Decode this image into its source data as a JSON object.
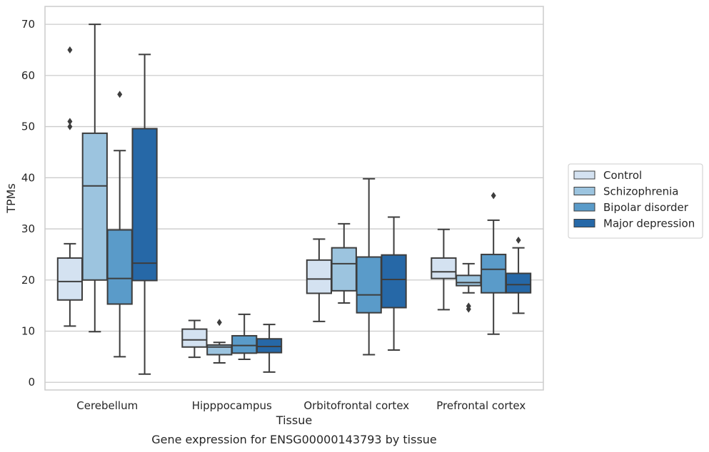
{
  "chart_data": {
    "type": "box",
    "caption": "Gene expression for ENSG00000143793 by tissue",
    "xlabel": "Tissue",
    "ylabel": "TPMs",
    "ylim": [
      -1.5,
      73.5
    ],
    "yticks": [
      0,
      10,
      20,
      30,
      40,
      50,
      60,
      70
    ],
    "grid": "horizontal",
    "legend_position": "right",
    "categories": [
      "Cerebellum",
      "Hipppocampus",
      "Orbitofrontal cortex",
      "Prefrontal cortex"
    ],
    "series": [
      {
        "name": "Control",
        "color": "#d4e2f1",
        "boxes": [
          {
            "whislo": 11,
            "q1": 16.1,
            "med": 19.7,
            "q3": 24.3,
            "whishi": 27.1,
            "fliers": [
              50,
              51,
              65
            ]
          },
          {
            "whislo": 4.9,
            "q1": 6.9,
            "med": 8.3,
            "q3": 10.4,
            "whishi": 12.1,
            "fliers": []
          },
          {
            "whislo": 11.9,
            "q1": 17.4,
            "med": 20.2,
            "q3": 23.9,
            "whishi": 28,
            "fliers": []
          },
          {
            "whislo": 14.2,
            "q1": 20.3,
            "med": 21.6,
            "q3": 24.3,
            "whishi": 29.9,
            "fliers": []
          }
        ]
      },
      {
        "name": "Schizophrenia",
        "color": "#9cc4df",
        "boxes": [
          {
            "whislo": 9.9,
            "q1": 20,
            "med": 38.4,
            "q3": 48.7,
            "whishi": 70,
            "fliers": []
          },
          {
            "whislo": 3.8,
            "q1": 5.4,
            "med": 6.9,
            "q3": 7.3,
            "whishi": 7.8,
            "fliers": [
              11.7
            ]
          },
          {
            "whislo": 15.5,
            "q1": 17.9,
            "med": 23.2,
            "q3": 26.3,
            "whishi": 31,
            "fliers": []
          },
          {
            "whislo": 17.5,
            "q1": 18.9,
            "med": 19.5,
            "q3": 20.9,
            "whishi": 23.2,
            "fliers": [
              14.3,
              14.9
            ]
          }
        ]
      },
      {
        "name": "Bipolar disorder",
        "color": "#5a9bc9",
        "boxes": [
          {
            "whislo": 5,
            "q1": 15.3,
            "med": 20.3,
            "q3": 29.8,
            "whishi": 45.3,
            "fliers": [
              56.3
            ]
          },
          {
            "whislo": 4.5,
            "q1": 5.7,
            "med": 7.2,
            "q3": 9.1,
            "whishi": 13.3,
            "fliers": []
          },
          {
            "whislo": 5.4,
            "q1": 13.6,
            "med": 17.1,
            "q3": 24.5,
            "whishi": 39.8,
            "fliers": []
          },
          {
            "whislo": 9.4,
            "q1": 17.5,
            "med": 22.1,
            "q3": 25,
            "whishi": 31.7,
            "fliers": [
              36.5
            ]
          }
        ]
      },
      {
        "name": "Major depression",
        "color": "#2668a7",
        "boxes": [
          {
            "whislo": 1.6,
            "q1": 19.9,
            "med": 23.3,
            "q3": 49.6,
            "whishi": 64.1,
            "fliers": []
          },
          {
            "whislo": 2,
            "q1": 5.8,
            "med": 7,
            "q3": 8.5,
            "whishi": 11.3,
            "fliers": []
          },
          {
            "whislo": 6.3,
            "q1": 14.6,
            "med": 20.1,
            "q3": 24.9,
            "whishi": 32.3,
            "fliers": []
          },
          {
            "whislo": 13.5,
            "q1": 17.5,
            "med": 19.1,
            "q3": 21.3,
            "whishi": 26.3,
            "fliers": [
              27.8
            ]
          }
        ]
      }
    ]
  }
}
